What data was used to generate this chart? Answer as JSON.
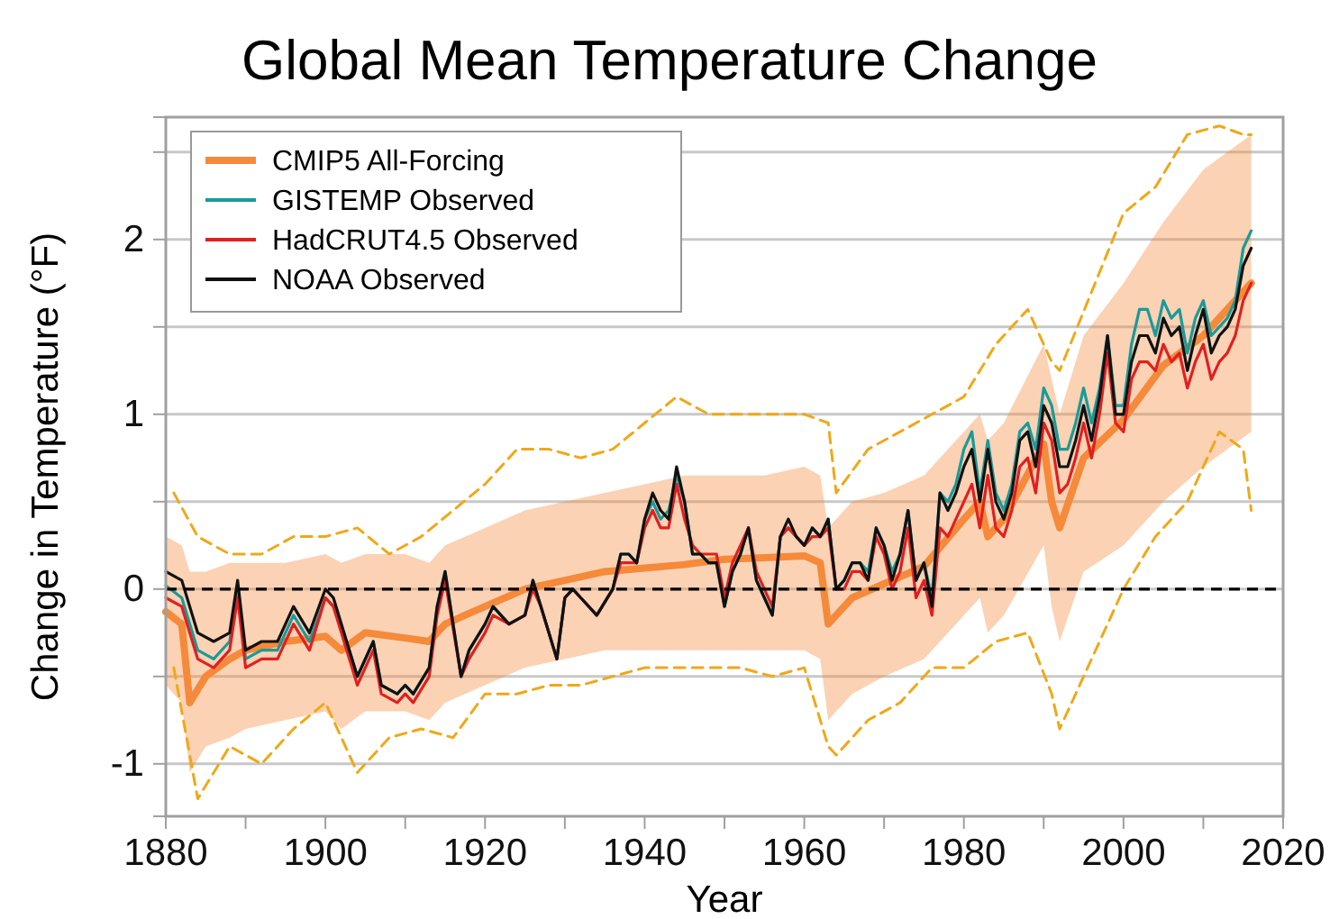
{
  "chart_data": {
    "type": "line",
    "title": "Global Mean Temperature Change",
    "xlabel": "Year",
    "ylabel": "Change in Temperature (°F)",
    "xlim": [
      1880,
      2020
    ],
    "xticks": [
      1880,
      {
        "value": 1890,
        "label": null
      },
      1900,
      {
        "value": 1910,
        "label": null
      },
      1920,
      {
        "value": 1930,
        "label": null
      },
      1940,
      {
        "value": 1950,
        "label": null
      },
      1960,
      {
        "value": 1970,
        "label": null
      },
      1980,
      {
        "value": 1990,
        "label": null
      },
      2000,
      {
        "value": 2010,
        "label": null
      },
      2020
    ],
    "ylim": [
      -1.3,
      2.7
    ],
    "yticks": [
      -1,
      {
        "value": -0.5,
        "label": null
      },
      0,
      {
        "value": 0.5,
        "label": null
      },
      1,
      {
        "value": 1.5,
        "label": null
      },
      2,
      {
        "value": 2.5,
        "label": null
      }
    ],
    "grid": "y",
    "legend": "top left",
    "line_style": "solid",
    "marker": "none",
    "ref_lines": [
      {
        "axis": "y",
        "value": 0,
        "color": "#000000",
        "line_style": "dashed"
      }
    ],
    "x": [
      1880,
      1882,
      1884,
      1886,
      1888,
      1889,
      1890,
      1892,
      1894,
      1896,
      1898,
      1900,
      1901,
      1903,
      1904,
      1906,
      1907,
      1909,
      1910,
      1911,
      1913,
      1914,
      1915,
      1917,
      1918,
      1920,
      1921,
      1923,
      1925,
      1926,
      1927,
      1929,
      1930,
      1931,
      1932,
      1934,
      1936,
      1937,
      1938,
      1939,
      1940,
      1941,
      1942,
      1943,
      1944,
      1945,
      1946,
      1947,
      1948,
      1949,
      1950,
      1951,
      1952,
      1953,
      1954,
      1955,
      1956,
      1957,
      1958,
      1959,
      1960,
      1961,
      1962,
      1963,
      1964,
      1965,
      1966,
      1967,
      1968,
      1969,
      1970,
      1971,
      1972,
      1973,
      1974,
      1975,
      1976,
      1977,
      1978,
      1979,
      1980,
      1981,
      1982,
      1983,
      1984,
      1985,
      1986,
      1987,
      1988,
      1989,
      1990,
      1991,
      1992,
      1993,
      1994,
      1995,
      1996,
      1997,
      1998,
      1999,
      2000,
      2001,
      2002,
      2003,
      2004,
      2005,
      2006,
      2007,
      2008,
      2009,
      2010,
      2011,
      2012,
      2013,
      2014,
      2015,
      2016
    ],
    "series": [
      {
        "line_style": "dashed",
        "color": "#f0a818",
        "x": [
          1881,
          1884,
          1888,
          1892,
          1896,
          1900,
          1904,
          1908,
          1912,
          1916,
          1920,
          1924,
          1928,
          1932,
          1936,
          1940,
          1944,
          1948,
          1952,
          1956,
          1960,
          1963,
          1964,
          1968,
          1972,
          1976,
          1980,
          1984,
          1988,
          1991,
          1992,
          1996,
          2000,
          2004,
          2008,
          2012,
          2015,
          2016
        ],
        "values": [
          0.55,
          0.3,
          0.2,
          0.2,
          0.3,
          0.3,
          0.35,
          0.2,
          0.3,
          0.45,
          0.6,
          0.8,
          0.8,
          0.75,
          0.8,
          0.95,
          1.1,
          1.0,
          1.0,
          1.0,
          1.0,
          0.95,
          0.55,
          0.8,
          0.9,
          1.0,
          1.1,
          1.4,
          1.6,
          1.3,
          1.25,
          1.7,
          2.15,
          2.3,
          2.6,
          2.65,
          2.6,
          2.6
        ]
      },
      {
        "line_style": "dashed",
        "color": "#f0a818",
        "x": [
          1881,
          1884,
          1888,
          1892,
          1896,
          1900,
          1904,
          1908,
          1912,
          1916,
          1920,
          1924,
          1928,
          1932,
          1936,
          1940,
          1944,
          1948,
          1952,
          1956,
          1960,
          1963,
          1964,
          1968,
          1972,
          1976,
          1980,
          1984,
          1988,
          1991,
          1992,
          1996,
          2000,
          2004,
          2008,
          2012,
          2015,
          2016
        ],
        "values": [
          -0.45,
          -1.2,
          -0.9,
          -1.0,
          -0.8,
          -0.65,
          -1.05,
          -0.85,
          -0.8,
          -0.85,
          -0.6,
          -0.6,
          -0.55,
          -0.55,
          -0.5,
          -0.45,
          -0.45,
          -0.45,
          -0.45,
          -0.5,
          -0.45,
          -0.9,
          -0.95,
          -0.75,
          -0.65,
          -0.45,
          -0.45,
          -0.3,
          -0.25,
          -0.6,
          -0.8,
          -0.4,
          0.0,
          0.3,
          0.5,
          0.9,
          0.8,
          0.45
        ]
      },
      {
        "name": "CMIP5 All-Forcing",
        "color": "#f58a3a",
        "x": [
          1880,
          1882,
          1883,
          1885,
          1888,
          1890,
          1895,
          1900,
          1902,
          1905,
          1910,
          1913,
          1915,
          1920,
          1925,
          1930,
          1935,
          1940,
          1945,
          1950,
          1955,
          1960,
          1962,
          1963,
          1964,
          1966,
          1970,
          1975,
          1980,
          1982,
          1983,
          1985,
          1990,
          1991,
          1992,
          1995,
          2000,
          2005,
          2010,
          2016
        ],
        "values": [
          -0.13,
          -0.2,
          -0.65,
          -0.5,
          -0.4,
          -0.35,
          -0.3,
          -0.27,
          -0.35,
          -0.25,
          -0.28,
          -0.3,
          -0.2,
          -0.1,
          0.0,
          0.05,
          0.1,
          0.12,
          0.14,
          0.17,
          0.18,
          0.19,
          0.15,
          -0.2,
          -0.15,
          -0.05,
          0.03,
          0.13,
          0.4,
          0.5,
          0.3,
          0.4,
          0.83,
          0.5,
          0.35,
          0.75,
          0.97,
          1.28,
          1.45,
          1.75
        ],
        "upper": [
          0.3,
          0.25,
          0.1,
          0.1,
          0.15,
          0.15,
          0.15,
          0.2,
          0.15,
          0.2,
          0.2,
          0.15,
          0.25,
          0.35,
          0.45,
          0.5,
          0.55,
          0.6,
          0.65,
          0.65,
          0.65,
          0.7,
          0.65,
          0.35,
          0.4,
          0.5,
          0.55,
          0.65,
          0.9,
          1.0,
          0.85,
          0.95,
          1.4,
          1.2,
          1.0,
          1.45,
          1.75,
          2.1,
          2.4,
          2.6
        ],
        "lower": [
          -0.55,
          -0.65,
          -1.05,
          -0.9,
          -0.85,
          -0.8,
          -0.75,
          -0.7,
          -0.8,
          -0.7,
          -0.7,
          -0.75,
          -0.65,
          -0.55,
          -0.45,
          -0.4,
          -0.35,
          -0.35,
          -0.35,
          -0.35,
          -0.35,
          -0.35,
          -0.4,
          -0.75,
          -0.7,
          -0.6,
          -0.5,
          -0.4,
          -0.15,
          -0.05,
          -0.25,
          -0.15,
          0.25,
          -0.1,
          -0.3,
          0.1,
          0.25,
          0.5,
          0.7,
          0.9
        ]
      },
      {
        "name": "GISTEMP Observed",
        "color": "#1a9a9a",
        "values": [
          0.02,
          -0.05,
          -0.35,
          -0.4,
          -0.3,
          0.0,
          -0.4,
          -0.35,
          -0.35,
          -0.15,
          -0.3,
          -0.05,
          -0.1,
          -0.35,
          -0.5,
          -0.3,
          -0.55,
          -0.6,
          -0.55,
          -0.6,
          -0.45,
          -0.1,
          0.1,
          -0.5,
          -0.35,
          -0.2,
          -0.1,
          -0.2,
          -0.15,
          0.05,
          -0.1,
          -0.4,
          -0.05,
          0.0,
          -0.05,
          -0.15,
          0.0,
          0.2,
          0.2,
          0.15,
          0.4,
          0.5,
          0.4,
          0.45,
          0.65,
          0.5,
          0.2,
          0.2,
          0.15,
          0.15,
          -0.1,
          0.1,
          0.2,
          0.35,
          0.05,
          -0.05,
          -0.15,
          0.3,
          0.35,
          0.3,
          0.25,
          0.35,
          0.3,
          0.4,
          0.0,
          0.05,
          0.15,
          0.15,
          0.1,
          0.35,
          0.25,
          0.1,
          0.2,
          0.45,
          0.05,
          0.15,
          -0.05,
          0.55,
          0.5,
          0.6,
          0.8,
          0.9,
          0.55,
          0.85,
          0.55,
          0.45,
          0.6,
          0.9,
          0.95,
          0.8,
          1.15,
          1.05,
          0.8,
          0.8,
          0.95,
          1.15,
          0.95,
          1.15,
          1.45,
          1.05,
          1.05,
          1.4,
          1.6,
          1.6,
          1.45,
          1.65,
          1.55,
          1.6,
          1.35,
          1.55,
          1.65,
          1.45,
          1.5,
          1.55,
          1.65,
          1.95,
          2.05
        ]
      },
      {
        "name": "HadCRUT4.5 Observed",
        "color": "#e02020",
        "values": [
          -0.05,
          -0.1,
          -0.4,
          -0.45,
          -0.35,
          -0.05,
          -0.45,
          -0.4,
          -0.4,
          -0.2,
          -0.35,
          -0.05,
          -0.1,
          -0.4,
          -0.55,
          -0.35,
          -0.6,
          -0.65,
          -0.6,
          -0.65,
          -0.5,
          -0.15,
          0.05,
          -0.5,
          -0.4,
          -0.25,
          -0.15,
          -0.2,
          -0.15,
          0.0,
          -0.1,
          -0.4,
          -0.05,
          0.0,
          -0.05,
          -0.15,
          0.0,
          0.15,
          0.15,
          0.15,
          0.35,
          0.45,
          0.35,
          0.35,
          0.6,
          0.4,
          0.25,
          0.2,
          0.2,
          0.2,
          -0.05,
          0.15,
          0.25,
          0.35,
          0.1,
          0.0,
          -0.1,
          0.3,
          0.35,
          0.3,
          0.25,
          0.3,
          0.3,
          0.35,
          0.0,
          0.0,
          0.1,
          0.1,
          0.05,
          0.3,
          0.2,
          0.0,
          0.1,
          0.35,
          -0.05,
          0.05,
          -0.15,
          0.35,
          0.3,
          0.4,
          0.5,
          0.6,
          0.35,
          0.65,
          0.35,
          0.3,
          0.45,
          0.7,
          0.75,
          0.55,
          0.95,
          0.85,
          0.55,
          0.6,
          0.75,
          0.95,
          0.75,
          1.0,
          1.35,
          0.95,
          0.9,
          1.2,
          1.3,
          1.3,
          1.25,
          1.4,
          1.3,
          1.35,
          1.15,
          1.3,
          1.4,
          1.2,
          1.3,
          1.35,
          1.45,
          1.65,
          1.75
        ]
      },
      {
        "name": "NOAA Observed",
        "color": "#111111",
        "values": [
          0.1,
          0.05,
          -0.25,
          -0.3,
          -0.25,
          0.05,
          -0.35,
          -0.3,
          -0.3,
          -0.1,
          -0.25,
          0.0,
          -0.05,
          -0.35,
          -0.5,
          -0.3,
          -0.55,
          -0.6,
          -0.55,
          -0.6,
          -0.45,
          -0.1,
          0.1,
          -0.5,
          -0.35,
          -0.2,
          -0.1,
          -0.2,
          -0.15,
          0.05,
          -0.1,
          -0.4,
          -0.05,
          0.0,
          -0.05,
          -0.15,
          0.0,
          0.2,
          0.2,
          0.15,
          0.4,
          0.55,
          0.45,
          0.4,
          0.7,
          0.5,
          0.2,
          0.2,
          0.15,
          0.15,
          -0.1,
          0.1,
          0.2,
          0.35,
          0.05,
          -0.05,
          -0.15,
          0.3,
          0.4,
          0.3,
          0.25,
          0.35,
          0.3,
          0.4,
          0.0,
          0.05,
          0.15,
          0.15,
          0.05,
          0.35,
          0.25,
          0.05,
          0.2,
          0.45,
          0.05,
          0.15,
          -0.1,
          0.55,
          0.45,
          0.55,
          0.7,
          0.8,
          0.5,
          0.8,
          0.5,
          0.4,
          0.55,
          0.85,
          0.9,
          0.7,
          1.05,
          0.95,
          0.7,
          0.7,
          0.85,
          1.05,
          0.85,
          1.1,
          1.45,
          1.0,
          1.0,
          1.3,
          1.45,
          1.45,
          1.35,
          1.55,
          1.45,
          1.5,
          1.25,
          1.45,
          1.6,
          1.35,
          1.45,
          1.5,
          1.6,
          1.85,
          1.95
        ]
      }
    ]
  }
}
